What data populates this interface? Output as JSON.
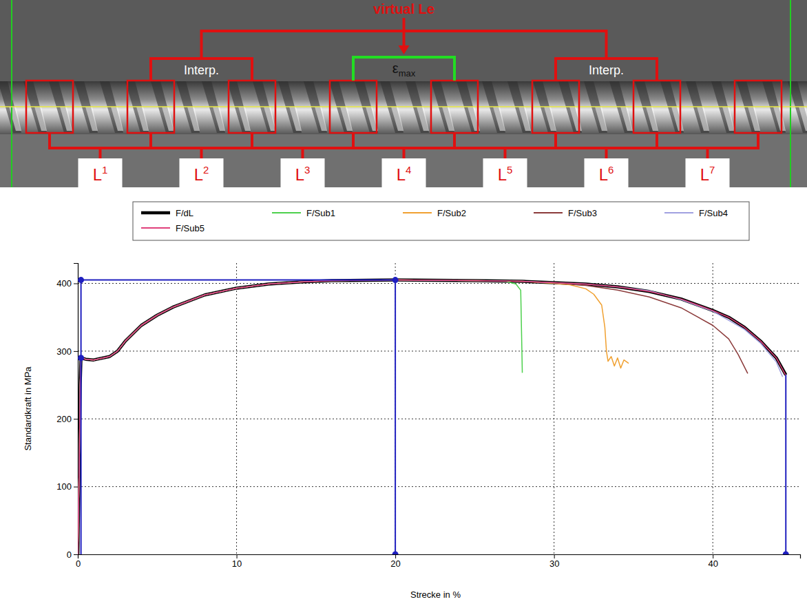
{
  "photo": {
    "title": "virtual Le",
    "interp_labels": [
      "Interp.",
      "Interp."
    ],
    "epsilon": {
      "text": "ε",
      "sub": "max"
    },
    "segment_labels": [
      {
        "text": "L",
        "sup": "1"
      },
      {
        "text": "L",
        "sup": "2"
      },
      {
        "text": "L",
        "sup": "3"
      },
      {
        "text": "L",
        "sup": "4"
      },
      {
        "text": "L",
        "sup": "5"
      },
      {
        "text": "L",
        "sup": "6"
      },
      {
        "text": "L",
        "sup": "7"
      }
    ]
  },
  "chart_data": {
    "type": "line",
    "x_label": "Strecke in %",
    "y_label": "Standardkraft in MPa",
    "xlim": [
      0,
      45.5
    ],
    "ylim": [
      0,
      430
    ],
    "xticks": [
      0,
      10,
      20,
      30,
      40
    ],
    "yticks": [
      0,
      100,
      200,
      300,
      400
    ],
    "grid": true,
    "legend": "top",
    "series": [
      {
        "name": "F/dL",
        "color": "#000000",
        "x": [
          0,
          0.1,
          0.15,
          0.2,
          0.5,
          1,
          2,
          2.5,
          3,
          4,
          5,
          6,
          8,
          10,
          12,
          14,
          16,
          20,
          25,
          28,
          30,
          32,
          34,
          36,
          38,
          40,
          41,
          42,
          43,
          44,
          44.6
        ],
        "values": [
          0,
          150,
          250,
          290,
          288,
          287,
          292,
          300,
          315,
          338,
          353,
          365,
          383,
          393,
          399,
          402,
          404,
          405,
          404,
          403,
          401,
          399,
          395,
          388,
          377,
          360,
          350,
          335,
          315,
          290,
          265
        ]
      },
      {
        "name": "F/Sub1",
        "color": "#4cd04c",
        "x": [
          0,
          0.1,
          0.15,
          0.2,
          0.5,
          1,
          2,
          2.5,
          3,
          4,
          5,
          6,
          8,
          10,
          12,
          14,
          16,
          20,
          25,
          27,
          27.6,
          27.9,
          27.95,
          28
        ],
        "values": [
          0,
          150,
          250,
          290,
          288,
          287,
          292,
          300,
          315,
          338,
          353,
          365,
          383,
          393,
          399,
          402,
          404,
          405,
          404,
          403,
          399,
          390,
          330,
          268
        ]
      },
      {
        "name": "F/Sub2",
        "color": "#f0a030",
        "x": [
          0,
          0.1,
          0.15,
          0.2,
          0.5,
          1,
          2,
          2.5,
          3,
          4,
          5,
          6,
          8,
          10,
          12,
          14,
          16,
          20,
          25,
          28,
          30,
          31,
          32,
          32.5,
          33,
          33.2,
          33.3,
          33.4,
          33.6,
          33.8,
          34,
          34.2,
          34.4,
          34.7
        ],
        "values": [
          0,
          150,
          250,
          290,
          288,
          287,
          292,
          300,
          315,
          338,
          353,
          365,
          383,
          393,
          399,
          402,
          404,
          405,
          404,
          403,
          400,
          398,
          392,
          384,
          368,
          335,
          300,
          285,
          292,
          278,
          290,
          275,
          287,
          282
        ]
      },
      {
        "name": "F/Sub3",
        "color": "#8b3a3a",
        "x": [
          0,
          0.1,
          0.15,
          0.2,
          0.5,
          1,
          2,
          2.5,
          3,
          4,
          5,
          6,
          8,
          10,
          12,
          14,
          16,
          20,
          25,
          28,
          30,
          32,
          34,
          36,
          38,
          40,
          41,
          41.6,
          42.2
        ],
        "values": [
          0,
          150,
          250,
          290,
          288,
          287,
          292,
          300,
          315,
          338,
          353,
          365,
          383,
          393,
          399,
          402,
          404,
          405,
          404,
          403,
          401,
          397,
          390,
          380,
          364,
          338,
          318,
          295,
          267
        ]
      },
      {
        "name": "F/Sub4",
        "color": "#a0a0e0",
        "x": [
          0,
          0.1,
          0.15,
          0.2,
          0.5,
          1,
          2,
          2.5,
          3,
          4,
          5,
          6,
          8,
          10,
          12,
          14,
          16,
          20,
          25,
          28,
          30,
          32,
          34,
          36,
          38,
          40,
          42,
          43,
          44,
          44.4
        ],
        "values": [
          0,
          150,
          250,
          290,
          288,
          287,
          292,
          300,
          315,
          338,
          353,
          365,
          383,
          393,
          399,
          402,
          404,
          405,
          404,
          403,
          401,
          399,
          395,
          389,
          376,
          359,
          332,
          312,
          284,
          262
        ]
      },
      {
        "name": "F/Sub5",
        "color": "#e0407a",
        "x": [
          0,
          0.1,
          0.15,
          0.2,
          0.5,
          1,
          2,
          2.5,
          3,
          4,
          5,
          6,
          8,
          10,
          12,
          14,
          16,
          20,
          25,
          28,
          30,
          32,
          34,
          36,
          38,
          40,
          41,
          42,
          43,
          44,
          44.6
        ],
        "values": [
          0,
          150,
          250,
          290,
          288,
          287,
          292,
          300,
          315,
          338,
          353,
          365,
          383,
          393,
          399,
          402,
          404,
          405,
          404,
          403,
          401,
          399,
          395,
          388,
          377,
          360,
          350,
          335,
          315,
          290,
          264
        ]
      }
    ],
    "cursor": {
      "color": "#1f1fbf",
      "segments": [
        {
          "x": [
            0.2,
            0.2,
            20,
            20
          ],
          "values": [
            0,
            405,
            405,
            0
          ]
        },
        {
          "x": [
            44.6,
            44.6
          ],
          "values": [
            0,
            265
          ]
        }
      ],
      "points": {
        "x": [
          0.2,
          0.2,
          20,
          20,
          44.6
        ],
        "values": [
          290,
          405,
          405,
          0,
          0
        ]
      }
    }
  }
}
